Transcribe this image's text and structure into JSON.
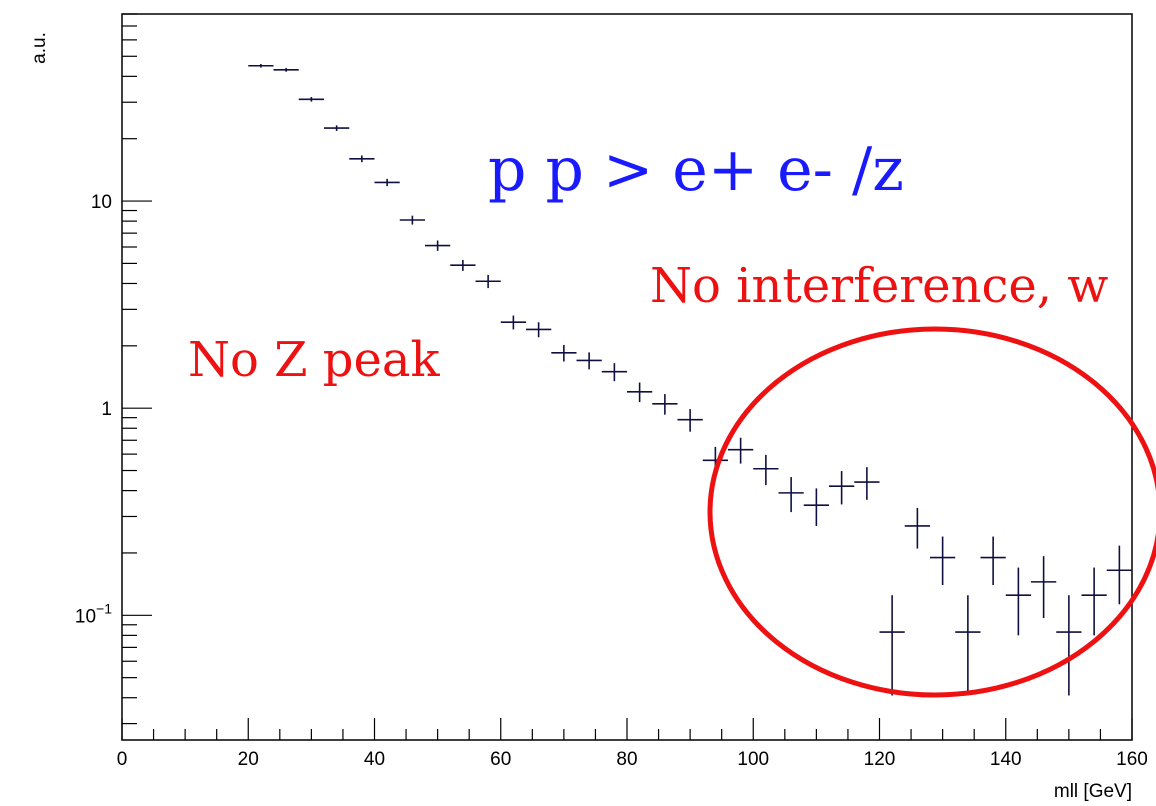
{
  "chart_data": {
    "type": "scatter",
    "style": "histogram-error-bars",
    "xlabel": "mll [GeV]",
    "ylabel": "a.u.",
    "xlim": [
      0,
      160
    ],
    "ylim": [
      0.025,
      80
    ],
    "yscale": "log",
    "xticks": [
      "0",
      "20",
      "40",
      "60",
      "80",
      "100",
      "120",
      "140",
      "160"
    ],
    "yticks": [
      {
        "value": 0.1,
        "label_base": "10",
        "label_exp": "−1"
      },
      {
        "value": 1,
        "label_base": "1",
        "label_exp": ""
      },
      {
        "value": 10,
        "label_base": "10",
        "label_exp": ""
      }
    ],
    "bin_width": 4,
    "series": [
      {
        "color": "#101040",
        "x": [
          22,
          26,
          30,
          34,
          38,
          42,
          46,
          50,
          54,
          58,
          62,
          66,
          70,
          74,
          78,
          82,
          86,
          90,
          94,
          98,
          102,
          106,
          110,
          114,
          118,
          122,
          126,
          130,
          134,
          138,
          142,
          146,
          150,
          154,
          158
        ],
        "y": [
          45,
          43,
          31,
          22.5,
          16,
          12.3,
          8.1,
          6.1,
          4.9,
          4.1,
          2.6,
          2.4,
          1.85,
          1.7,
          1.5,
          1.2,
          1.05,
          0.88,
          0.56,
          0.63,
          0.51,
          0.39,
          0.34,
          0.42,
          0.44,
          0.083,
          0.27,
          0.19,
          0.083,
          0.19,
          0.125,
          0.145,
          0.083,
          0.125,
          0.165
        ],
        "err": [
          0.9,
          0.9,
          0.8,
          0.7,
          0.6,
          0.5,
          0.4,
          0.35,
          0.3,
          0.3,
          0.2,
          0.2,
          0.17,
          0.16,
          0.15,
          0.13,
          0.12,
          0.11,
          0.09,
          0.09,
          0.085,
          0.075,
          0.07,
          0.077,
          0.079,
          0.042,
          0.06,
          0.05,
          0.042,
          0.05,
          0.045,
          0.048,
          0.042,
          0.045,
          0.052
        ]
      }
    ],
    "annotations": [
      {
        "id": "process",
        "text": "p p > e+ e- /z",
        "color": "#1a1aff"
      },
      {
        "id": "no-z-peak",
        "text": "No Z peak",
        "color": "#ee1111"
      },
      {
        "id": "no-interference",
        "text": "No interference, w",
        "color": "#ee1111"
      }
    ],
    "highlight_color": "#ee1111"
  }
}
